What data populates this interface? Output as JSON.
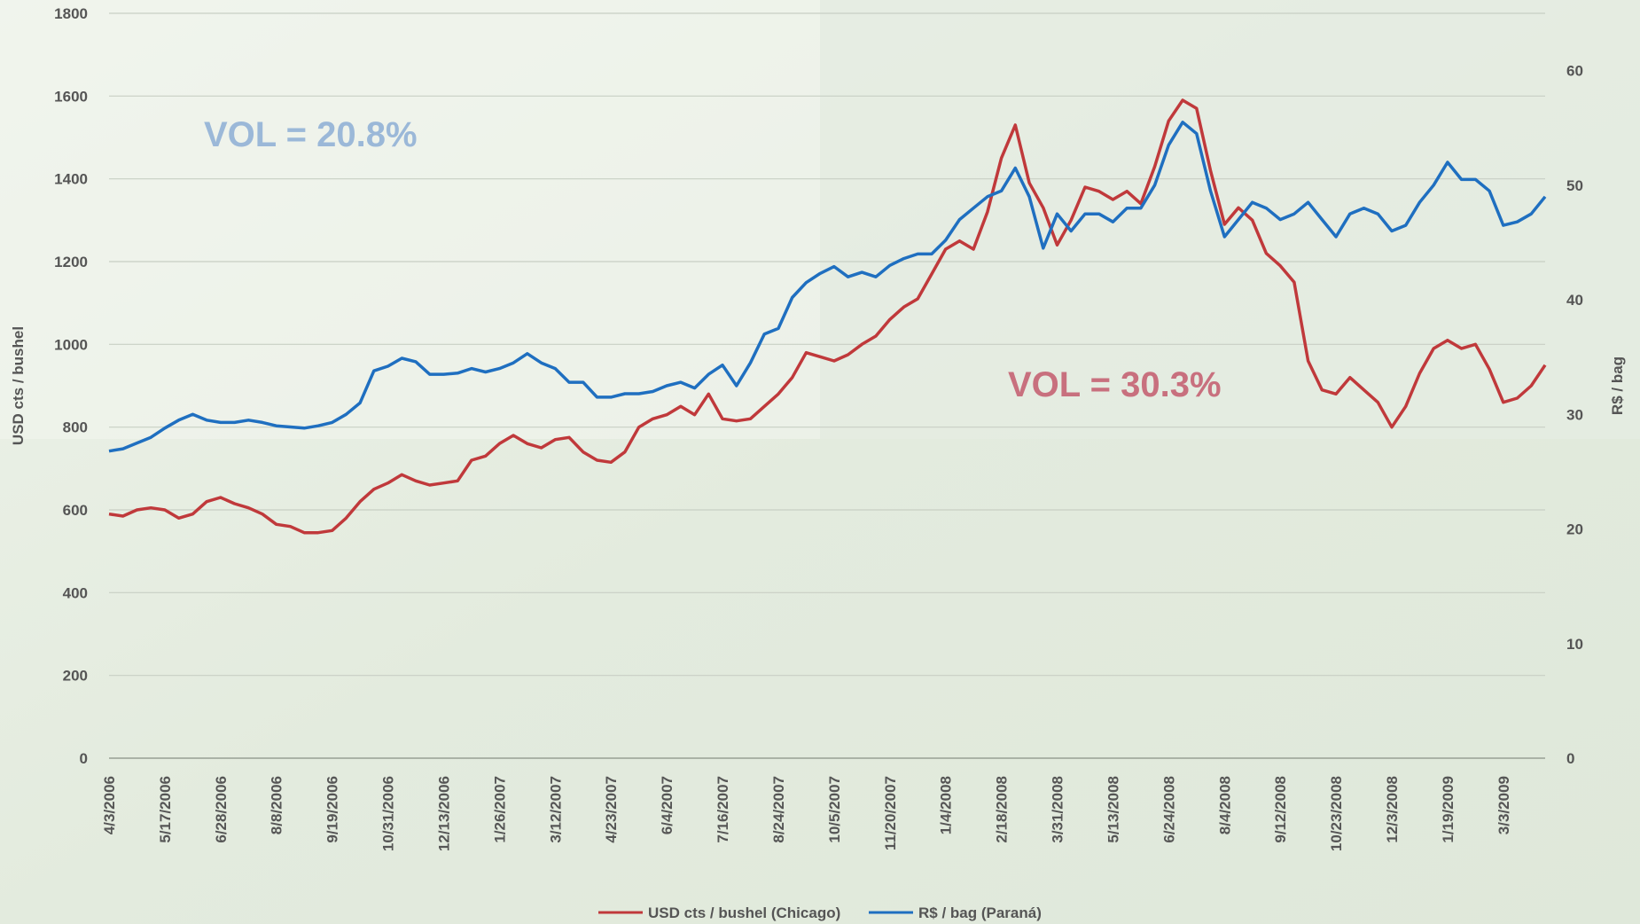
{
  "chart_data": {
    "type": "line",
    "annotations": [
      "VOL = 20.8%",
      "VOL = 30.3%"
    ],
    "ylabel": "USD cts / bushel",
    "y2label": "R$ / bag",
    "ylim": [
      0,
      1800
    ],
    "yticks": [
      0,
      200,
      400,
      600,
      800,
      1000,
      1200,
      1400,
      1600,
      1800
    ],
    "y2lim": [
      0,
      65
    ],
    "y2ticks": [
      0,
      10,
      20,
      30,
      40,
      50,
      60
    ],
    "grid": true,
    "legend": "bottom",
    "categories": [
      "4/3/2006",
      null,
      null,
      null,
      "5/17/2006",
      null,
      null,
      null,
      "6/28/2006",
      null,
      null,
      null,
      "8/8/2006",
      null,
      null,
      null,
      "9/19/2006",
      null,
      null,
      null,
      "10/31/2006",
      null,
      null,
      null,
      "12/13/2006",
      null,
      null,
      null,
      "1/26/2007",
      null,
      null,
      null,
      "3/12/2007",
      null,
      null,
      null,
      "4/23/2007",
      null,
      null,
      null,
      "6/4/2007",
      null,
      null,
      null,
      "7/16/2007",
      null,
      null,
      null,
      "8/24/2007",
      null,
      null,
      null,
      "10/5/2007",
      null,
      null,
      null,
      "11/20/2007",
      null,
      null,
      null,
      "1/4/2008",
      null,
      null,
      null,
      "2/18/2008",
      null,
      null,
      null,
      "3/31/2008",
      null,
      null,
      null,
      "5/13/2008",
      null,
      null,
      null,
      "6/24/2008",
      null,
      null,
      null,
      "8/4/2008",
      null,
      null,
      null,
      "9/12/2008",
      null,
      null,
      null,
      "10/23/2008",
      null,
      null,
      null,
      "12/3/2008",
      null,
      null,
      null,
      "1/19/2009",
      null,
      null,
      null,
      "3/3/2009",
      null,
      null,
      null
    ],
    "series": [
      {
        "name": "USD cts / bushel (Chicago)",
        "color": "#c0393b",
        "values": [
          590,
          585,
          600,
          605,
          600,
          580,
          590,
          620,
          630,
          615,
          605,
          590,
          565,
          560,
          545,
          545,
          550,
          580,
          620,
          650,
          665,
          685,
          670,
          660,
          665,
          670,
          720,
          730,
          760,
          780,
          760,
          750,
          770,
          775,
          740,
          720,
          715,
          740,
          800,
          820,
          830,
          850,
          830,
          880,
          820,
          815,
          820,
          850,
          880,
          920,
          980,
          970,
          960,
          975,
          1000,
          1020,
          1060,
          1090,
          1110,
          1170,
          1230,
          1250,
          1230,
          1320,
          1450,
          1530,
          1390,
          1330,
          1240,
          1300,
          1380,
          1370,
          1350,
          1370,
          1340,
          1430,
          1540,
          1590,
          1570,
          1420,
          1290,
          1330,
          1300,
          1220,
          1190,
          1150,
          960,
          890,
          880,
          920,
          890,
          860,
          800,
          850,
          930,
          990,
          1010,
          990,
          1000,
          940,
          860,
          870,
          900,
          950
        ]
      },
      {
        "name": "R$ / bag (Paraná)",
        "color": "#1f6fc0",
        "axis": "y2",
        "values": [
          26.8,
          27.0,
          27.5,
          28.0,
          28.8,
          29.5,
          30.0,
          29.5,
          29.3,
          29.3,
          29.5,
          29.3,
          29.0,
          28.9,
          28.8,
          29.0,
          29.3,
          30.0,
          31.0,
          33.8,
          34.2,
          34.9,
          34.6,
          33.5,
          33.5,
          33.6,
          34.0,
          33.7,
          34.0,
          34.5,
          35.3,
          34.5,
          34.0,
          32.8,
          32.8,
          31.5,
          31.5,
          31.8,
          31.8,
          32.0,
          32.5,
          32.8,
          32.3,
          33.5,
          34.3,
          32.5,
          34.5,
          37.0,
          37.5,
          40.2,
          41.5,
          42.3,
          42.9,
          42.0,
          42.4,
          42.0,
          43.0,
          43.6,
          44.0,
          44.0,
          45.2,
          47.0,
          48.0,
          49.0,
          49.5,
          51.5,
          49.0,
          44.5,
          47.5,
          46.0,
          47.5,
          47.5,
          46.8,
          48.0,
          48.0,
          50.0,
          53.5,
          55.5,
          54.5,
          49.5,
          45.5,
          47.0,
          48.5,
          48.0,
          47.0,
          47.5,
          48.5,
          47.0,
          45.5,
          47.5,
          48.0,
          47.5,
          46.0,
          46.5,
          48.5,
          50.0,
          52.0,
          50.5,
          50.5,
          49.5,
          46.5,
          46.8,
          47.5,
          49.0
        ]
      }
    ]
  }
}
